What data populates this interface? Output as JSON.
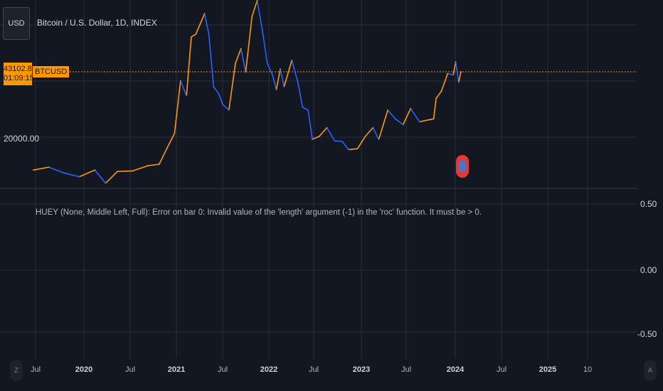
{
  "header": {
    "currency_button": "USD",
    "title": "Bitcoin / U.S. Dollar, 1D, INDEX"
  },
  "price_tag": {
    "price": "43102.82",
    "countdown": "01:09:15",
    "symbol": "BTCUSD"
  },
  "indicator": {
    "error_message": "HUEY (None, Middle Left, Full): Error on bar 0: Invalid value of the 'length' argument (-1) in the 'roc' function. It must be > 0.",
    "y_labels": [
      "0.50",
      "0.00",
      "-0.50"
    ]
  },
  "price_axis": {
    "label": "20000.00"
  },
  "time_axis": {
    "labels": [
      {
        "text": "Jul",
        "bold": false
      },
      {
        "text": "2020",
        "bold": true
      },
      {
        "text": "Jul",
        "bold": false
      },
      {
        "text": "2021",
        "bold": true
      },
      {
        "text": "Jul",
        "bold": false
      },
      {
        "text": "2022",
        "bold": true
      },
      {
        "text": "Jul",
        "bold": false
      },
      {
        "text": "2023",
        "bold": true
      },
      {
        "text": "Jul",
        "bold": false
      },
      {
        "text": "2024",
        "bold": true
      },
      {
        "text": "Jul",
        "bold": false
      },
      {
        "text": "2025",
        "bold": true
      },
      {
        "text": "10",
        "bold": false
      }
    ],
    "left_button": "Z",
    "right_button": "A"
  },
  "colors": {
    "background": "#131722",
    "up": "#ff9800",
    "down": "#2962ff",
    "price_line": "#ff9800",
    "grid": "#2a2e39"
  },
  "chart_data": {
    "type": "line",
    "title": "Bitcoin / U.S. Dollar, 1D, INDEX",
    "series": [
      {
        "name": "BTCUSD",
        "x": [
          "2019-06-01",
          "2019-08-01",
          "2019-10-01",
          "2019-12-01",
          "2020-02-01",
          "2020-03-15",
          "2020-05-01",
          "2020-07-01",
          "2020-09-01",
          "2020-10-15",
          "2020-11-15",
          "2020-12-15",
          "2021-01-08",
          "2021-02-01",
          "2021-02-20",
          "2021-03-10",
          "2021-04-14",
          "2021-05-01",
          "2021-05-20",
          "2021-06-10",
          "2021-06-25",
          "2021-07-20",
          "2021-08-15",
          "2021-09-06",
          "2021-09-25",
          "2021-10-20",
          "2021-11-10",
          "2021-12-01",
          "2021-12-20",
          "2022-01-10",
          "2022-01-25",
          "2022-02-10",
          "2022-02-25",
          "2022-03-28",
          "2022-04-20",
          "2022-05-10",
          "2022-06-01",
          "2022-06-18",
          "2022-07-15",
          "2022-08-15",
          "2022-09-15",
          "2022-10-15",
          "2022-11-09",
          "2022-12-15",
          "2023-01-15",
          "2023-02-15",
          "2023-03-10",
          "2023-04-15",
          "2023-05-15",
          "2023-06-15",
          "2023-07-15",
          "2023-08-20",
          "2023-09-15",
          "2023-10-15",
          "2023-10-25",
          "2023-11-15",
          "2023-12-10",
          "2024-01-01",
          "2024-01-11",
          "2024-01-23",
          "2024-02-01"
        ],
        "y": [
          9500,
          10500,
          8500,
          7200,
          9500,
          5000,
          9000,
          9200,
          11000,
          11500,
          17000,
          22000,
          40000,
          35000,
          55000,
          56000,
          63000,
          56000,
          38000,
          35500,
          32000,
          30000,
          46000,
          51000,
          43000,
          62000,
          67500,
          57000,
          46000,
          42000,
          37000,
          44000,
          38000,
          47000,
          40000,
          31000,
          30000,
          20000,
          21000,
          24000,
          19500,
          19300,
          16500,
          16800,
          21000,
          24000,
          20000,
          30000,
          27000,
          25000,
          30500,
          26000,
          26500,
          27000,
          34000,
          36500,
          42500,
          42000,
          46500,
          39500,
          43100
        ]
      }
    ],
    "ylim": [
      0,
      70000
    ],
    "y_tick": "20000.00",
    "indicator_ylim": [
      -0.6,
      0.6
    ]
  }
}
